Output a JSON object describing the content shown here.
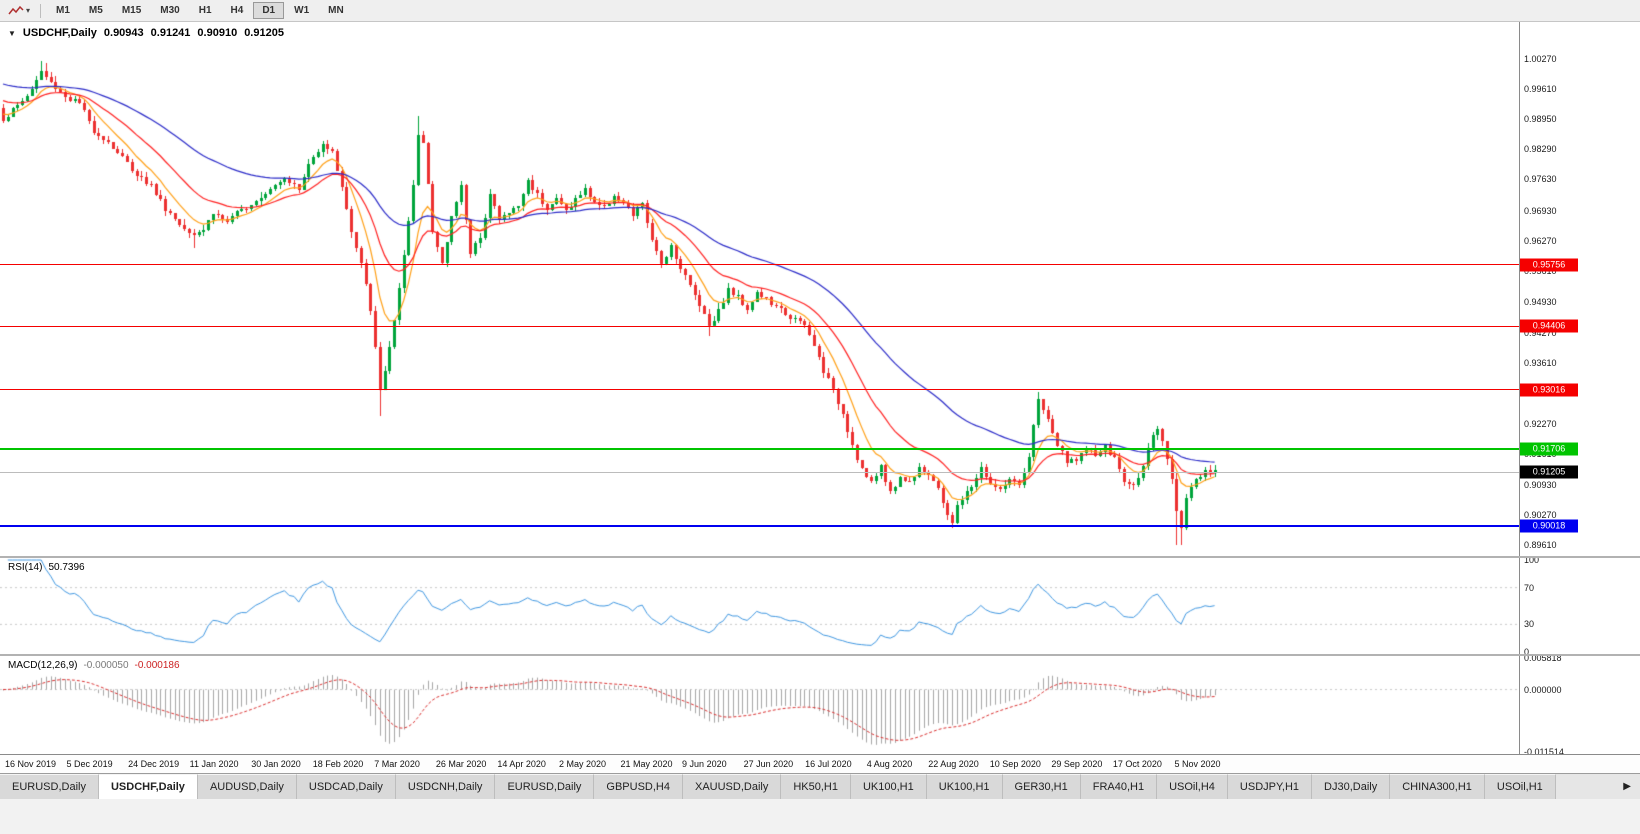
{
  "colors": {
    "up": "#00A43B",
    "down": "#EC3030",
    "ma_fast": "#FFA018",
    "ma_mid": "#FF2020",
    "ma_slow": "#2B2BC8",
    "rsi_line": "#3E96E0",
    "macd_hist": "#A6A6A6",
    "macd_signal": "#D93030",
    "hline_red": "#F50000",
    "hline_green": "#00C400",
    "hline_blue": "#0000F0",
    "current_price_bg": "#000000",
    "current_price_line": "#BCBCBC",
    "level_dash": "#C8C8C8"
  },
  "toolbar": {
    "dropdown_caret": "▾",
    "timeframes": [
      {
        "label": "M1",
        "active": false
      },
      {
        "label": "M5",
        "active": false
      },
      {
        "label": "M15",
        "active": false
      },
      {
        "label": "M30",
        "active": false
      },
      {
        "label": "H1",
        "active": false
      },
      {
        "label": "H4",
        "active": false
      },
      {
        "label": "D1",
        "active": true
      },
      {
        "label": "W1",
        "active": false
      },
      {
        "label": "MN",
        "active": false
      }
    ]
  },
  "chart": {
    "collapse_icon": "▼",
    "symbol": "USDCHF,Daily",
    "open": "0.90943",
    "high": "0.91241",
    "low": "0.90910",
    "close": "0.91205"
  },
  "rsi_panel": {
    "name": "RSI(14)",
    "value": "50.7396",
    "levels": [
      70,
      30
    ],
    "axis_labels": [
      {
        "v": 100,
        "label": "100"
      },
      {
        "v": 70,
        "label": "70"
      },
      {
        "v": 30,
        "label": "30"
      },
      {
        "v": 0,
        "label": "0"
      }
    ]
  },
  "macd_panel": {
    "name": "MACD(12,26,9)",
    "main_value": "-0.000050",
    "signal_value": "-0.000186",
    "axis_labels": [
      {
        "v": 0.005818,
        "label": "0.005818"
      },
      {
        "v": 0,
        "label": "0.000000"
      },
      {
        "v": -0.011514,
        "label": "-0.011514"
      }
    ]
  },
  "tabs": {
    "scroll_icon": "▶",
    "items": [
      {
        "label": "EURUSD,Daily",
        "active": false
      },
      {
        "label": "USDCHF,Daily",
        "active": true
      },
      {
        "label": "AUDUSD,Daily",
        "active": false
      },
      {
        "label": "USDCAD,Daily",
        "active": false
      },
      {
        "label": "USDCNH,Daily",
        "active": false
      },
      {
        "label": "EURUSD,Daily",
        "active": false
      },
      {
        "label": "GBPUSD,H4",
        "active": false
      },
      {
        "label": "XAUUSD,Daily",
        "active": false
      },
      {
        "label": "HK50,H1",
        "active": false
      },
      {
        "label": "UK100,H1",
        "active": false
      },
      {
        "label": "UK100,H1",
        "active": false
      },
      {
        "label": "GER30,H1",
        "active": false
      },
      {
        "label": "FRA40,H1",
        "active": false
      },
      {
        "label": "USOil,H4",
        "active": false
      },
      {
        "label": "USDJPY,H1",
        "active": false
      },
      {
        "label": "DJ30,Daily",
        "active": false
      },
      {
        "label": "CHINA300,H1",
        "active": false
      },
      {
        "label": "USOil,H1",
        "active": false
      }
    ]
  },
  "chart_data": {
    "type": "candlestick",
    "symbol": "USDCHF",
    "timeframe": "Daily",
    "candle_count": 255,
    "seed": 1337,
    "price_axis_labels": [
      "1.00270",
      "0.99610",
      "0.98950",
      "0.98290",
      "0.97630",
      "0.96930",
      "0.96270",
      "0.95610",
      "0.94930",
      "0.94270",
      "0.93610",
      "0.92950",
      "0.92270",
      "0.91610",
      "0.90930",
      "0.90270",
      "0.89610"
    ],
    "x_axis_dates": [
      "16 Nov 2019",
      "5 Dec 2019",
      "24 Dec 2019",
      "11 Jan 2020",
      "30 Jan 2020",
      "18 Feb 2020",
      "7 Mar 2020",
      "26 Mar 2020",
      "14 Apr 2020",
      "2 May 2020",
      "21 May 2020",
      "9 Jun 2020",
      "27 Jun 2020",
      "16 Jul 2020",
      "4 Aug 2020",
      "22 Aug 2020",
      "10 Sep 2020",
      "29 Sep 2020",
      "17 Oct 2020",
      "5 Nov 2020"
    ],
    "hlines": [
      {
        "price": 0.95756,
        "label": "0.95756",
        "color": "red"
      },
      {
        "price": 0.94406,
        "label": "0.94406",
        "color": "red"
      },
      {
        "price": 0.93016,
        "label": "0.93016",
        "color": "red"
      },
      {
        "price": 0.91706,
        "label": "0.91706",
        "color": "green"
      },
      {
        "price": 0.90018,
        "label": "0.90018",
        "color": "blue"
      }
    ],
    "current_price": {
      "value": 0.91205,
      "label": "0.91205"
    },
    "moving_averages": [
      {
        "period": 8,
        "seed_offset": 0.002,
        "color_key": "ma_fast"
      },
      {
        "period": 20,
        "seed_offset": 0.005,
        "color_key": "ma_mid"
      },
      {
        "period": 50,
        "seed_offset": 0.0085,
        "color_key": "ma_slow"
      }
    ],
    "rsi_period": 14,
    "macd_params": {
      "fast": 12,
      "slow": 26,
      "signal": 9
    },
    "close_anchors": [
      [
        0,
        0.9895
      ],
      [
        3,
        0.9925
      ],
      [
        6,
        0.996
      ],
      [
        8,
        1.0
      ],
      [
        10,
        0.9975
      ],
      [
        13,
        0.9945
      ],
      [
        16,
        0.993
      ],
      [
        19,
        0.987
      ],
      [
        22,
        0.9845
      ],
      [
        25,
        0.981
      ],
      [
        28,
        0.9775
      ],
      [
        31,
        0.975
      ],
      [
        34,
        0.97
      ],
      [
        37,
        0.9665
      ],
      [
        40,
        0.9645
      ],
      [
        42,
        0.9655
      ],
      [
        44,
        0.969
      ],
      [
        47,
        0.967
      ],
      [
        50,
        0.9695
      ],
      [
        53,
        0.972
      ],
      [
        56,
        0.9745
      ],
      [
        59,
        0.977
      ],
      [
        62,
        0.974
      ],
      [
        64,
        0.9795
      ],
      [
        67,
        0.9845
      ],
      [
        69,
        0.982
      ],
      [
        71,
        0.975
      ],
      [
        73,
        0.9645
      ],
      [
        75,
        0.9575
      ],
      [
        77,
        0.948
      ],
      [
        79,
        0.93
      ],
      [
        80,
        0.9345
      ],
      [
        82,
        0.945
      ],
      [
        84,
        0.959
      ],
      [
        86,
        0.975
      ],
      [
        87,
        0.986
      ],
      [
        88,
        0.9845
      ],
      [
        89,
        0.976
      ],
      [
        90,
        0.965
      ],
      [
        92,
        0.9575
      ],
      [
        94,
        0.968
      ],
      [
        96,
        0.9755
      ],
      [
        98,
        0.9595
      ],
      [
        100,
        0.964
      ],
      [
        102,
        0.973
      ],
      [
        104,
        0.9675
      ],
      [
        106,
        0.969
      ],
      [
        108,
        0.9705
      ],
      [
        110,
        0.976
      ],
      [
        112,
        0.973
      ],
      [
        114,
        0.97
      ],
      [
        116,
        0.972
      ],
      [
        118,
        0.9695
      ],
      [
        120,
        0.972
      ],
      [
        122,
        0.974
      ],
      [
        124,
        0.9715
      ],
      [
        126,
        0.97
      ],
      [
        128,
        0.973
      ],
      [
        130,
        0.9708
      ],
      [
        132,
        0.9685
      ],
      [
        134,
        0.9712
      ],
      [
        136,
        0.9625
      ],
      [
        138,
        0.958
      ],
      [
        140,
        0.9618
      ],
      [
        142,
        0.957
      ],
      [
        144,
        0.953
      ],
      [
        146,
        0.949
      ],
      [
        148,
        0.9445
      ],
      [
        150,
        0.9475
      ],
      [
        152,
        0.952
      ],
      [
        154,
        0.9505
      ],
      [
        156,
        0.948
      ],
      [
        158,
        0.9515
      ],
      [
        160,
        0.95
      ],
      [
        162,
        0.948
      ],
      [
        164,
        0.947
      ],
      [
        166,
        0.9455
      ],
      [
        168,
        0.944
      ],
      [
        170,
        0.9398
      ],
      [
        172,
        0.9345
      ],
      [
        174,
        0.9298
      ],
      [
        176,
        0.925
      ],
      [
        178,
        0.918
      ],
      [
        180,
        0.9128
      ],
      [
        182,
        0.9095
      ],
      [
        184,
        0.9135
      ],
      [
        186,
        0.9075
      ],
      [
        188,
        0.911
      ],
      [
        190,
        0.9098
      ],
      [
        192,
        0.9135
      ],
      [
        194,
        0.9118
      ],
      [
        196,
        0.908
      ],
      [
        198,
        0.903
      ],
      [
        199,
        0.9012
      ],
      [
        200,
        0.9045
      ],
      [
        202,
        0.9075
      ],
      [
        204,
        0.911
      ],
      [
        205,
        0.913
      ],
      [
        207,
        0.9095
      ],
      [
        209,
        0.908
      ],
      [
        211,
        0.9108
      ],
      [
        213,
        0.9085
      ],
      [
        215,
        0.915
      ],
      [
        216,
        0.922
      ],
      [
        217,
        0.9285
      ],
      [
        219,
        0.9232
      ],
      [
        221,
        0.918
      ],
      [
        223,
        0.914
      ],
      [
        225,
        0.9152
      ],
      [
        227,
        0.917
      ],
      [
        229,
        0.9158
      ],
      [
        231,
        0.9175
      ],
      [
        233,
        0.915
      ],
      [
        235,
        0.91
      ],
      [
        237,
        0.9088
      ],
      [
        239,
        0.914
      ],
      [
        241,
        0.9195
      ],
      [
        242,
        0.9215
      ],
      [
        244,
        0.915
      ],
      [
        245,
        0.91
      ],
      [
        246,
        0.904
      ],
      [
        247,
        0.9
      ],
      [
        248,
        0.907
      ],
      [
        250,
        0.9105
      ],
      [
        252,
        0.9118
      ],
      [
        254,
        0.9121
      ]
    ],
    "wicks": [
      {
        "i": 8,
        "high": 1.0023
      },
      {
        "i": 9,
        "high": 1.0018
      },
      {
        "i": 40,
        "low": 0.9613
      },
      {
        "i": 79,
        "low": 0.9245
      },
      {
        "i": 87,
        "high": 0.9901
      },
      {
        "i": 148,
        "low": 0.942
      },
      {
        "i": 199,
        "low": 0.8998
      },
      {
        "i": 217,
        "high": 0.9297
      },
      {
        "i": 246,
        "low": 0.8962
      },
      {
        "i": 247,
        "low": 0.896
      }
    ]
  }
}
